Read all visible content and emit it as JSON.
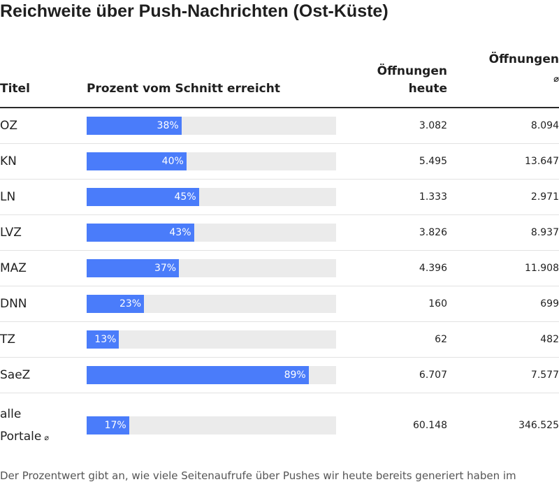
{
  "title": "Reichweite über Push-Nachrichten (Ost-Küste)",
  "columns": {
    "titel": "Titel",
    "prozent": "Prozent vom Schnitt erreicht",
    "heute_line1": "Öffnungen",
    "heute_line2": "heute",
    "avg_line1": "Öffnungen",
    "avg_symbol": "⌀"
  },
  "bar_color": "#4a7cfa",
  "track_color": "#ebebeb",
  "chart_data": {
    "type": "table",
    "columns": [
      "Titel",
      "Prozent vom Schnitt erreicht",
      "Öffnungen heute",
      "Öffnungen ⌀"
    ],
    "rows": [
      {
        "titel": "OZ",
        "prozent": 38,
        "prozent_label": "38%",
        "heute": "3.082",
        "avg": "8.094"
      },
      {
        "titel": "KN",
        "prozent": 40,
        "prozent_label": "40%",
        "heute": "5.495",
        "avg": "13.647"
      },
      {
        "titel": "LN",
        "prozent": 45,
        "prozent_label": "45%",
        "heute": "1.333",
        "avg": "2.971"
      },
      {
        "titel": "LVZ",
        "prozent": 43,
        "prozent_label": "43%",
        "heute": "3.826",
        "avg": "8.937"
      },
      {
        "titel": "MAZ",
        "prozent": 37,
        "prozent_label": "37%",
        "heute": "4.396",
        "avg": "11.908"
      },
      {
        "titel": "DNN",
        "prozent": 23,
        "prozent_label": "23%",
        "heute": "160",
        "avg": "699"
      },
      {
        "titel": "TZ",
        "prozent": 13,
        "prozent_label": "13%",
        "heute": "62",
        "avg": "482"
      },
      {
        "titel": "SaeZ",
        "prozent": 89,
        "prozent_label": "89%",
        "heute": "6.707",
        "avg": "7.577"
      }
    ],
    "total_row": {
      "titel_line1": "alle",
      "titel_line2": "Portale",
      "titel_symbol": "⌀",
      "prozent": 17,
      "prozent_label": "17%",
      "heute": "60.148",
      "avg": "346.525"
    },
    "bar_scale_max": 100
  },
  "footnote": "Der Prozentwert gibt an, wie viele Seitenaufrufe über Pushes wir heute bereits generiert haben im"
}
